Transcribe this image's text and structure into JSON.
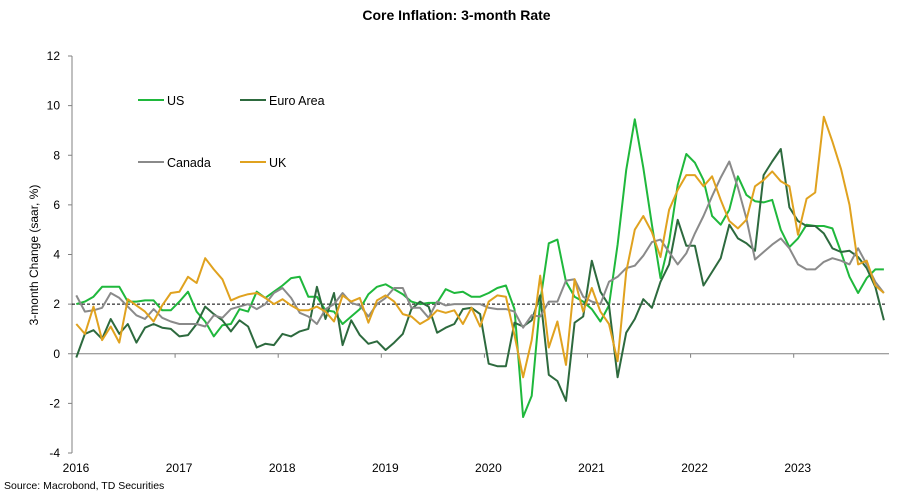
{
  "chart_data": {
    "type": "line",
    "title": "Core Inflation: 3-month Rate",
    "xlabel": "",
    "ylabel": "3-month Change (saar, %)",
    "ylim": [
      -4,
      12
    ],
    "yticks": [
      -4,
      -2,
      0,
      2,
      4,
      6,
      8,
      10,
      12
    ],
    "xticks": [
      "2016",
      "2017",
      "2018",
      "2019",
      "2020",
      "2021",
      "2022",
      "2023"
    ],
    "x_start": "2016-01",
    "x_frequency": "monthly",
    "reference_line": {
      "value": 2,
      "style": "dashed"
    },
    "legend_position": "top-left",
    "grid": false,
    "series": [
      {
        "name": "US",
        "color": "#1fb83c",
        "values": [
          2.0,
          2.1,
          2.3,
          2.7,
          2.7,
          2.7,
          2.1,
          2.1,
          2.15,
          2.15,
          1.75,
          1.75,
          2.1,
          2.5,
          1.7,
          1.3,
          0.7,
          1.15,
          1.2,
          1.8,
          1.7,
          2.5,
          2.25,
          2.5,
          2.75,
          3.05,
          3.1,
          2.3,
          2.3,
          1.75,
          1.7,
          1.2,
          1.5,
          1.8,
          2.4,
          2.7,
          2.8,
          2.6,
          2.4,
          2.1,
          2.0,
          2.05,
          2.05,
          2.6,
          2.45,
          2.5,
          2.3,
          2.3,
          2.45,
          2.65,
          2.75,
          1.8,
          -2.55,
          -1.7,
          2.1,
          4.45,
          4.6,
          2.9,
          2.3,
          2.1,
          1.8,
          1.3,
          1.95,
          4.4,
          7.4,
          9.45,
          7.5,
          5.2,
          3.05,
          4.5,
          6.8,
          8.05,
          7.7,
          7.0,
          5.55,
          5.2,
          5.8,
          7.15,
          6.4,
          6.15,
          6.1,
          6.2,
          5.0,
          4.3,
          4.65,
          5.2,
          5.15,
          5.15,
          5.05,
          4.1,
          3.1,
          2.45,
          3.05,
          3.4,
          3.4
        ]
      },
      {
        "name": "Euro Area",
        "color": "#2d6a3e",
        "values": [
          -0.15,
          0.8,
          0.95,
          0.6,
          1.4,
          0.8,
          1.2,
          0.45,
          1.05,
          1.2,
          1.05,
          1.0,
          0.7,
          0.75,
          1.2,
          1.9,
          1.6,
          1.35,
          0.9,
          1.35,
          1.1,
          0.25,
          0.4,
          0.35,
          0.8,
          0.7,
          0.9,
          1.0,
          2.7,
          1.4,
          2.45,
          0.35,
          1.35,
          0.75,
          0.4,
          0.5,
          0.15,
          0.45,
          0.8,
          1.8,
          2.1,
          1.9,
          0.85,
          1.05,
          1.2,
          1.8,
          1.85,
          1.6,
          -0.4,
          -0.5,
          -0.5,
          1.25,
          1.1,
          1.35,
          2.35,
          -0.85,
          -1.1,
          -1.9,
          1.25,
          1.5,
          3.75,
          2.5,
          1.95,
          -0.95,
          0.85,
          1.4,
          2.2,
          1.85,
          2.9,
          3.6,
          5.4,
          4.35,
          4.35,
          2.75,
          3.3,
          3.85,
          5.2,
          4.65,
          4.45,
          4.15,
          7.2,
          7.75,
          8.25,
          5.9,
          5.35,
          5.15,
          5.15,
          4.85,
          4.25,
          4.1,
          4.15,
          3.9,
          3.45,
          2.7,
          1.35
        ]
      },
      {
        "name": "Canada",
        "color": "#8a8a8a",
        "values": [
          2.35,
          1.7,
          1.75,
          1.85,
          2.45,
          2.25,
          1.9,
          1.55,
          1.4,
          1.8,
          1.45,
          1.3,
          1.2,
          1.2,
          1.2,
          1.1,
          1.55,
          1.45,
          1.8,
          1.9,
          2.0,
          1.8,
          2.0,
          2.45,
          2.65,
          2.25,
          1.65,
          1.5,
          1.2,
          1.8,
          2.0,
          2.45,
          2.05,
          1.95,
          1.5,
          2.0,
          2.25,
          2.65,
          2.65,
          1.85,
          1.85,
          1.45,
          2.1,
          1.95,
          2.0,
          2.0,
          2.0,
          2.0,
          1.85,
          1.8,
          1.8,
          1.7,
          1.05,
          1.55,
          1.5,
          2.1,
          2.1,
          2.95,
          3.0,
          2.3,
          2.1,
          2.0,
          2.9,
          3.1,
          3.45,
          3.55,
          3.95,
          4.5,
          4.6,
          4.1,
          3.6,
          4.05,
          4.85,
          5.55,
          6.35,
          7.1,
          7.75,
          6.7,
          5.45,
          3.8,
          4.1,
          4.4,
          4.65,
          4.25,
          3.6,
          3.4,
          3.4,
          3.7,
          3.85,
          3.75,
          3.6,
          4.25,
          3.6,
          2.9,
          2.45
        ]
      },
      {
        "name": "UK",
        "color": "#e0a21f",
        "values": [
          1.2,
          0.8,
          1.9,
          0.55,
          1.1,
          0.45,
          2.2,
          1.95,
          1.7,
          1.3,
          1.95,
          2.45,
          2.5,
          3.1,
          2.85,
          3.85,
          3.4,
          3.0,
          2.15,
          2.3,
          2.4,
          2.45,
          2.25,
          2.0,
          2.2,
          1.95,
          1.75,
          1.75,
          1.9,
          1.7,
          1.3,
          2.35,
          2.1,
          2.25,
          1.25,
          2.15,
          2.35,
          2.1,
          1.6,
          1.5,
          1.2,
          1.4,
          1.75,
          1.65,
          1.75,
          1.2,
          1.85,
          1.1,
          2.1,
          2.35,
          2.3,
          0.75,
          -0.95,
          0.55,
          3.15,
          0.25,
          1.3,
          -0.45,
          3.0,
          1.7,
          2.65,
          1.7,
          1.2,
          -0.3,
          3.3,
          5.0,
          5.55,
          4.9,
          3.9,
          5.8,
          6.6,
          7.2,
          7.2,
          6.75,
          7.15,
          6.2,
          5.35,
          5.05,
          5.4,
          6.75,
          7.0,
          7.35,
          6.95,
          6.75,
          4.8,
          6.25,
          6.5,
          9.55,
          8.55,
          7.45,
          6.0,
          3.6,
          3.75,
          2.75,
          2.45
        ]
      }
    ]
  },
  "source": "Source: Macrobond, TD Securities"
}
